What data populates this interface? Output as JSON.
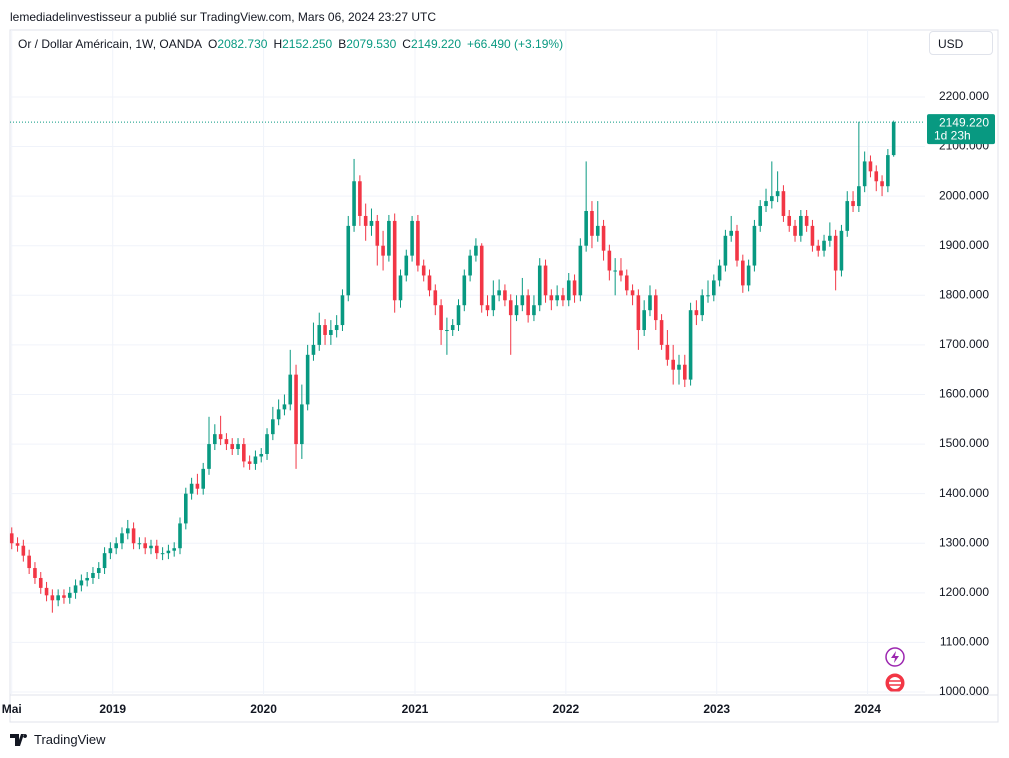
{
  "header": {
    "publisher": "lemediadelinvestisseur a publié sur TradingView.com, Mars 06, 2024 23:27 UTC"
  },
  "footer": {
    "brand": "TradingView"
  },
  "chart_data": {
    "type": "candlestick",
    "symbol": "Or / Dollar Américain, 1W, OANDA",
    "legend": [
      {
        "key": "O",
        "value": 2082.73,
        "label": "2082.730"
      },
      {
        "key": "H",
        "value": 2152.25,
        "label": "2152.250"
      },
      {
        "key": "B",
        "value": 2079.53,
        "label": "2079.530"
      },
      {
        "key": "C",
        "value": 2149.22,
        "label": "2149.220"
      }
    ],
    "change": "+66.490 (+3.19%)",
    "currency": "USD",
    "last_price": {
      "value": 2149.22,
      "label": "2149.220"
    },
    "countdown": "1d 23h",
    "up_color": "#089981",
    "down_color": "#f23645",
    "grid": true,
    "ylim": [
      994,
      2335
    ],
    "yticks": [
      {
        "value": 1000,
        "label": "1000.000"
      },
      {
        "value": 1100,
        "label": "1100.000"
      },
      {
        "value": 1200,
        "label": "1200.000"
      },
      {
        "value": 1300,
        "label": "1300.000"
      },
      {
        "value": 1400,
        "label": "1400.000"
      },
      {
        "value": 1500,
        "label": "1500.000"
      },
      {
        "value": 1600,
        "label": "1600.000"
      },
      {
        "value": 1700,
        "label": "1700.000"
      },
      {
        "value": 1800,
        "label": "1800.000"
      },
      {
        "value": 1900,
        "label": "1900.000"
      },
      {
        "value": 2000,
        "label": "2000.000"
      },
      {
        "value": 2100,
        "label": "2100.000"
      },
      {
        "value": 2200,
        "label": "2200.000"
      }
    ],
    "xlim": [
      -0.3,
      157.4
    ],
    "xticks": [
      {
        "value": 0,
        "label": "Mai"
      },
      {
        "value": 17.4,
        "label": "2019"
      },
      {
        "value": 43.4,
        "label": "2020"
      },
      {
        "value": 69.5,
        "label": "2021"
      },
      {
        "value": 95.5,
        "label": "2022"
      },
      {
        "value": 121.5,
        "label": "2023"
      },
      {
        "value": 147.5,
        "label": "2024"
      }
    ],
    "ohlc": [
      [
        1320,
        1332,
        1288,
        1300
      ],
      [
        1300,
        1312,
        1283,
        1295
      ],
      [
        1295,
        1307,
        1263,
        1275
      ],
      [
        1275,
        1287,
        1238,
        1250
      ],
      [
        1250,
        1262,
        1218,
        1230
      ],
      [
        1230,
        1242,
        1198,
        1210
      ],
      [
        1210,
        1222,
        1183,
        1195
      ],
      [
        1195,
        1207,
        1160,
        1185
      ],
      [
        1185,
        1207,
        1173,
        1195
      ],
      [
        1195,
        1207,
        1178,
        1190
      ],
      [
        1190,
        1212,
        1178,
        1200
      ],
      [
        1200,
        1227,
        1188,
        1215
      ],
      [
        1215,
        1237,
        1203,
        1225
      ],
      [
        1225,
        1242,
        1213,
        1230
      ],
      [
        1230,
        1252,
        1218,
        1240
      ],
      [
        1240,
        1262,
        1228,
        1250
      ],
      [
        1250,
        1292,
        1238,
        1280
      ],
      [
        1280,
        1302,
        1268,
        1290
      ],
      [
        1290,
        1312,
        1278,
        1300
      ],
      [
        1300,
        1332,
        1288,
        1320
      ],
      [
        1320,
        1347,
        1308,
        1330
      ],
      [
        1330,
        1342,
        1288,
        1300
      ],
      [
        1300,
        1312,
        1288,
        1300
      ],
      [
        1300,
        1312,
        1278,
        1290
      ],
      [
        1290,
        1307,
        1278,
        1295
      ],
      [
        1295,
        1307,
        1268,
        1280
      ],
      [
        1280,
        1292,
        1266,
        1280
      ],
      [
        1280,
        1297,
        1268,
        1285
      ],
      [
        1285,
        1302,
        1273,
        1290
      ],
      [
        1290,
        1352,
        1278,
        1340
      ],
      [
        1340,
        1412,
        1328,
        1400
      ],
      [
        1400,
        1432,
        1388,
        1420
      ],
      [
        1420,
        1440,
        1398,
        1410
      ],
      [
        1410,
        1462,
        1398,
        1450
      ],
      [
        1450,
        1555,
        1438,
        1500
      ],
      [
        1500,
        1540,
        1488,
        1520
      ],
      [
        1520,
        1557,
        1498,
        1510
      ],
      [
        1510,
        1522,
        1488,
        1500
      ],
      [
        1500,
        1512,
        1478,
        1490
      ],
      [
        1490,
        1512,
        1478,
        1500
      ],
      [
        1500,
        1512,
        1453,
        1465
      ],
      [
        1465,
        1477,
        1448,
        1460
      ],
      [
        1460,
        1487,
        1448,
        1475
      ],
      [
        1475,
        1492,
        1463,
        1480
      ],
      [
        1480,
        1532,
        1468,
        1520
      ],
      [
        1520,
        1575,
        1508,
        1550
      ],
      [
        1550,
        1590,
        1538,
        1570
      ],
      [
        1570,
        1600,
        1558,
        1580
      ],
      [
        1580,
        1690,
        1568,
        1640
      ],
      [
        1640,
        1660,
        1450,
        1500
      ],
      [
        1500,
        1620,
        1470,
        1580
      ],
      [
        1580,
        1700,
        1568,
        1680
      ],
      [
        1680,
        1745,
        1668,
        1700
      ],
      [
        1700,
        1765,
        1688,
        1740
      ],
      [
        1740,
        1752,
        1700,
        1720
      ],
      [
        1720,
        1750,
        1700,
        1730
      ],
      [
        1730,
        1760,
        1715,
        1740
      ],
      [
        1740,
        1812,
        1728,
        1800
      ],
      [
        1800,
        1960,
        1788,
        1940
      ],
      [
        1940,
        2075,
        1928,
        2030
      ],
      [
        2030,
        2042,
        1940,
        1960
      ],
      [
        1960,
        1985,
        1910,
        1940
      ],
      [
        1940,
        1975,
        1920,
        1950
      ],
      [
        1950,
        1962,
        1860,
        1900
      ],
      [
        1900,
        1930,
        1850,
        1880
      ],
      [
        1880,
        1962,
        1868,
        1950
      ],
      [
        1950,
        1965,
        1765,
        1790
      ],
      [
        1790,
        1852,
        1775,
        1840
      ],
      [
        1840,
        1892,
        1828,
        1880
      ],
      [
        1880,
        1960,
        1868,
        1950
      ],
      [
        1950,
        1962,
        1848,
        1860
      ],
      [
        1860,
        1872,
        1828,
        1840
      ],
      [
        1840,
        1852,
        1798,
        1810
      ],
      [
        1810,
        1822,
        1760,
        1780
      ],
      [
        1780,
        1792,
        1700,
        1730
      ],
      [
        1730,
        1755,
        1680,
        1730
      ],
      [
        1730,
        1752,
        1718,
        1740
      ],
      [
        1740,
        1792,
        1728,
        1780
      ],
      [
        1780,
        1852,
        1768,
        1840
      ],
      [
        1840,
        1892,
        1828,
        1880
      ],
      [
        1880,
        1915,
        1868,
        1900
      ],
      [
        1900,
        1905,
        1765,
        1780
      ],
      [
        1780,
        1800,
        1758,
        1770
      ],
      [
        1770,
        1830,
        1758,
        1800
      ],
      [
        1800,
        1832,
        1788,
        1810
      ],
      [
        1810,
        1822,
        1778,
        1790
      ],
      [
        1790,
        1802,
        1680,
        1760
      ],
      [
        1760,
        1800,
        1748,
        1780
      ],
      [
        1780,
        1835,
        1768,
        1800
      ],
      [
        1800,
        1812,
        1745,
        1760
      ],
      [
        1760,
        1800,
        1748,
        1780
      ],
      [
        1780,
        1875,
        1768,
        1860
      ],
      [
        1860,
        1872,
        1785,
        1800
      ],
      [
        1800,
        1812,
        1770,
        1790
      ],
      [
        1790,
        1820,
        1778,
        1800
      ],
      [
        1800,
        1815,
        1778,
        1790
      ],
      [
        1790,
        1845,
        1778,
        1830
      ],
      [
        1830,
        1842,
        1785,
        1800
      ],
      [
        1800,
        1915,
        1788,
        1900
      ],
      [
        1900,
        2070,
        1888,
        1970
      ],
      [
        1970,
        1990,
        1895,
        1920
      ],
      [
        1920,
        1990,
        1908,
        1940
      ],
      [
        1940,
        1952,
        1870,
        1890
      ],
      [
        1890,
        1902,
        1830,
        1850
      ],
      [
        1850,
        1875,
        1800,
        1850
      ],
      [
        1850,
        1875,
        1828,
        1840
      ],
      [
        1840,
        1852,
        1800,
        1810
      ],
      [
        1810,
        1822,
        1780,
        1800
      ],
      [
        1800,
        1812,
        1690,
        1730
      ],
      [
        1730,
        1790,
        1718,
        1770
      ],
      [
        1770,
        1820,
        1758,
        1800
      ],
      [
        1800,
        1812,
        1730,
        1750
      ],
      [
        1750,
        1762,
        1690,
        1700
      ],
      [
        1700,
        1730,
        1658,
        1670
      ],
      [
        1670,
        1700,
        1620,
        1650
      ],
      [
        1650,
        1680,
        1620,
        1660
      ],
      [
        1660,
        1680,
        1615,
        1630
      ],
      [
        1630,
        1785,
        1618,
        1770
      ],
      [
        1770,
        1790,
        1740,
        1760
      ],
      [
        1760,
        1812,
        1748,
        1800
      ],
      [
        1800,
        1830,
        1785,
        1800
      ],
      [
        1800,
        1842,
        1788,
        1830
      ],
      [
        1830,
        1872,
        1818,
        1860
      ],
      [
        1860,
        1932,
        1848,
        1920
      ],
      [
        1920,
        1960,
        1908,
        1930
      ],
      [
        1930,
        1942,
        1858,
        1870
      ],
      [
        1870,
        1882,
        1805,
        1820
      ],
      [
        1820,
        1872,
        1808,
        1860
      ],
      [
        1860,
        1952,
        1848,
        1940
      ],
      [
        1940,
        1992,
        1928,
        1980
      ],
      [
        1980,
        2015,
        1968,
        1990
      ],
      [
        1990,
        2070,
        1975,
        2000
      ],
      [
        2000,
        2050,
        1988,
        2010
      ],
      [
        2010,
        2022,
        1948,
        1960
      ],
      [
        1960,
        1972,
        1928,
        1940
      ],
      [
        1940,
        1952,
        1908,
        1920
      ],
      [
        1920,
        1972,
        1908,
        1960
      ],
      [
        1960,
        1972,
        1928,
        1940
      ],
      [
        1940,
        1952,
        1888,
        1900
      ],
      [
        1900,
        1912,
        1878,
        1890
      ],
      [
        1890,
        1922,
        1878,
        1910
      ],
      [
        1910,
        1947,
        1898,
        1920
      ],
      [
        1920,
        1932,
        1810,
        1850
      ],
      [
        1850,
        1942,
        1838,
        1930
      ],
      [
        1930,
        2010,
        1918,
        1990
      ],
      [
        1990,
        2010,
        1968,
        1980
      ],
      [
        1980,
        2150,
        1968,
        2020
      ],
      [
        2020,
        2090,
        2008,
        2070
      ],
      [
        2070,
        2082,
        2038,
        2050
      ],
      [
        2050,
        2062,
        2010,
        2030
      ],
      [
        2030,
        2042,
        2000,
        2020
      ],
      [
        2020,
        2095,
        2008,
        2082.73
      ],
      [
        2082.73,
        2152.25,
        2079.53,
        2149.22
      ]
    ]
  }
}
